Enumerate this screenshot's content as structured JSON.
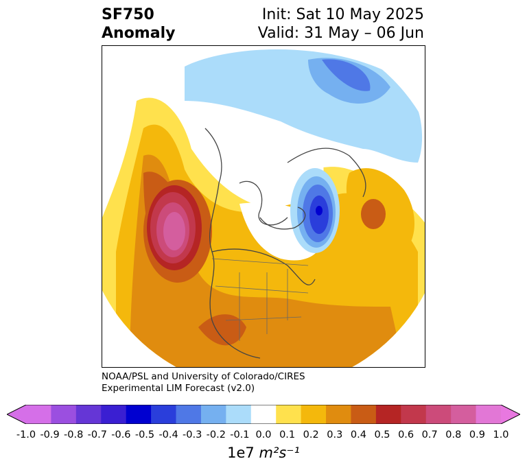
{
  "title": {
    "left_line1": "SF750",
    "left_line2": "Anomaly",
    "right_line1": "Init: Sat 10 May 2025",
    "right_line2": "Valid: 31 May – 06 Jun"
  },
  "credit": {
    "line1": "NOAA/PSL and University of Colorado/CIRES",
    "line2": "Experimental LIM Forecast (v2.0)"
  },
  "colorbar": {
    "ticks": [
      "-1.0",
      "-0.9",
      "-0.8",
      "-0.7",
      "-0.6",
      "-0.5",
      "-0.4",
      "-0.3",
      "-0.2",
      "-0.1",
      "0.0",
      "0.1",
      "0.2",
      "0.3",
      "0.4",
      "0.5",
      "0.6",
      "0.7",
      "0.8",
      "0.9",
      "1.0"
    ],
    "colors": [
      "#d56fe8",
      "#9b4fe0",
      "#6536d6",
      "#3a1fd2",
      "#0000d0",
      "#2a3edb",
      "#4f78e6",
      "#75b0f0",
      "#abdcfa",
      "#ffffff",
      "#ffe14d",
      "#f4b80c",
      "#e08c0f",
      "#c95c15",
      "#b52524",
      "#c2384c",
      "#cc4b7a",
      "#d45e9e",
      "#e277d6"
    ],
    "extend_low_color": "#d56fe8",
    "extend_high_color": "#e878e0",
    "units_prefix": "1e7",
    "units_expr": "m²s⁻¹"
  }
}
